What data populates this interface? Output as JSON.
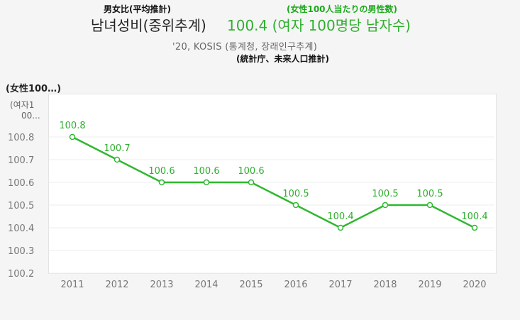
{
  "header": {
    "jp_title": "男女比(平均推計)",
    "jp_subtitle": "(女性100人当たりの男性数)",
    "kr_title": "남녀성비(중위추계)",
    "value_text": "100.4 (여자 100명당 남자수)",
    "source_kr": "'20, KOSIS (통계청, 장래인구추계)",
    "source_jp": "(統計庁、未来人口推計)"
  },
  "unit": {
    "jp": "(女性100…)",
    "kr_line1": "(여자1",
    "kr_line2": "00..."
  },
  "colors": {
    "line": "#2fb82f",
    "label": "#2fae2f",
    "axis_text": "#777777"
  },
  "chart_data": {
    "type": "line",
    "categories": [
      "2011",
      "2012",
      "2013",
      "2014",
      "2015",
      "2016",
      "2017",
      "2018",
      "2019",
      "2020"
    ],
    "series": [
      {
        "values": [
          100.8,
          100.7,
          100.6,
          100.6,
          100.6,
          100.5,
          100.4,
          100.5,
          100.5,
          100.4
        ]
      }
    ],
    "data_labels": [
      "100.8",
      "100.7",
      "100.6",
      "100.6",
      "100.6",
      "100.5",
      "100.4",
      "100.5",
      "100.5",
      "100.4"
    ],
    "y_ticks": [
      "100.2",
      "100.3",
      "100.4",
      "100.5",
      "100.6",
      "100.7",
      "100.8"
    ],
    "ylim": [
      100.2,
      100.8
    ],
    "grid": true
  }
}
